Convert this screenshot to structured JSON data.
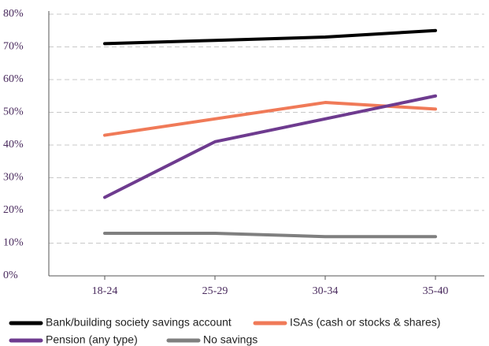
{
  "chart_data": {
    "type": "line",
    "categories": [
      "18-24",
      "25-29",
      "30-34",
      "35-40"
    ],
    "series": [
      {
        "name": "Bank/building society savings account",
        "color": "#000000",
        "values": [
          71,
          72,
          73,
          75
        ]
      },
      {
        "name": "ISAs (cash or stocks & shares)",
        "color": "#f07a58",
        "values": [
          43,
          48,
          53,
          51
        ]
      },
      {
        "name": "Pension (any type)",
        "color": "#6e3b8f",
        "values": [
          24,
          41,
          48,
          55
        ]
      },
      {
        "name": "No savings",
        "color": "#7f7f7f",
        "values": [
          13,
          13,
          12,
          12
        ]
      }
    ],
    "ylim": [
      0,
      80
    ],
    "yticks": [
      {
        "value": 0,
        "label": "0%"
      },
      {
        "value": 10,
        "label": "10%"
      },
      {
        "value": 20,
        "label": "20%"
      },
      {
        "value": 30,
        "label": "30%"
      },
      {
        "value": 40,
        "label": "40%"
      },
      {
        "value": 50,
        "label": "50%"
      },
      {
        "value": 60,
        "label": "60%"
      },
      {
        "value": 70,
        "label": "70%"
      },
      {
        "value": 80,
        "label": "80%"
      }
    ],
    "grid": true,
    "legend": "bottom"
  }
}
